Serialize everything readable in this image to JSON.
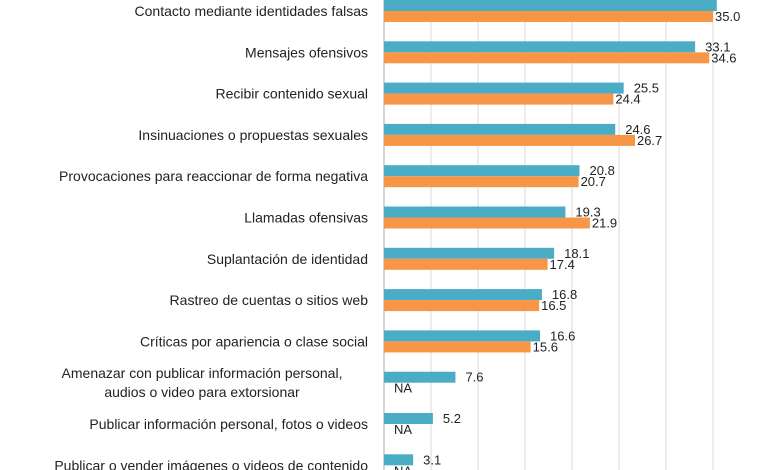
{
  "chart_data": {
    "type": "bar",
    "orientation": "horizontal",
    "title": "",
    "xlabel": "",
    "ylabel": "",
    "xlim": [
      0,
      35
    ],
    "grid": true,
    "grid_step": 5,
    "legend": "none",
    "categories": [
      [
        "Contacto mediante identidades falsas"
      ],
      [
        "Mensajes ofensivos"
      ],
      [
        "Recibir contenido sexual"
      ],
      [
        "Insinuaciones o propuestas sexuales"
      ],
      [
        "Provocaciones para reaccionar de forma negativa"
      ],
      [
        "Llamadas ofensivas"
      ],
      [
        "Suplantación de identidad"
      ],
      [
        "Rastreo de cuentas o sitios web"
      ],
      [
        "Críticas por apariencia o clase social"
      ],
      [
        "Amenazar con publicar información personal,",
        "audios o video para extorsionar"
      ],
      [
        "Publicar información personal, fotos o videos"
      ],
      [
        "Publicar o vender imágenes o videos de contenido"
      ]
    ],
    "series": [
      {
        "name": "series-1",
        "color": "#4BACC6",
        "values": [
          35.4,
          33.1,
          25.5,
          24.6,
          20.8,
          19.3,
          18.1,
          16.8,
          16.6,
          7.6,
          5.2,
          3.1
        ],
        "labels": [
          "",
          "33.1",
          "25.5",
          "24.6",
          "20.8",
          "19.3",
          "18.1",
          "16.8",
          "16.6",
          "7.6",
          "5.2",
          "3.1"
        ]
      },
      {
        "name": "series-2",
        "color": "#F79646",
        "values": [
          35.0,
          34.6,
          24.4,
          26.7,
          20.7,
          21.9,
          17.4,
          16.5,
          15.6,
          null,
          null,
          null
        ],
        "labels": [
          "35.0",
          "34.6",
          "24.4",
          "26.7",
          "20.7",
          "21.9",
          "17.4",
          "16.5",
          "15.6",
          "NA",
          "NA",
          "NA"
        ]
      }
    ]
  }
}
